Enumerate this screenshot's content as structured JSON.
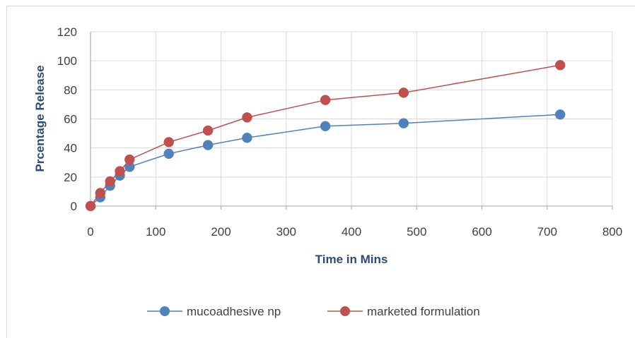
{
  "chart_data": {
    "type": "line",
    "xlabel": "Time in Mins",
    "ylabel": "Prcentage Release",
    "xlim": [
      0,
      800
    ],
    "ylim": [
      0,
      120
    ],
    "xticks": [
      0,
      100,
      200,
      300,
      400,
      500,
      600,
      700,
      800
    ],
    "yticks": [
      0,
      20,
      40,
      60,
      80,
      100,
      120
    ],
    "grid": true,
    "legend_position": "bottom",
    "series": [
      {
        "name": "mucoadhesive np",
        "color": "#4f81bd",
        "x": [
          0,
          15,
          30,
          45,
          60,
          120,
          180,
          240,
          360,
          480,
          720
        ],
        "y": [
          0,
          6,
          14,
          21,
          27,
          36,
          42,
          47,
          55,
          57,
          63
        ]
      },
      {
        "name": "marketed formulation",
        "color": "#c0504d",
        "x": [
          0,
          15,
          30,
          45,
          60,
          120,
          180,
          240,
          360,
          480,
          720
        ],
        "y": [
          0,
          9,
          17,
          24,
          32,
          44,
          52,
          61,
          73,
          78,
          97
        ]
      }
    ]
  }
}
